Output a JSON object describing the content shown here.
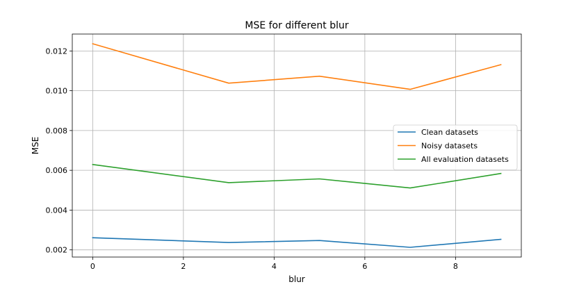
{
  "chart_data": {
    "type": "line",
    "title": "MSE for different blur",
    "xlabel": "blur",
    "ylabel": "MSE",
    "xlim": [
      -0.45,
      9.45
    ],
    "ylim": [
      0.00164,
      0.01285
    ],
    "xticks": [
      0,
      2,
      4,
      6,
      8
    ],
    "xtick_labels": [
      "0",
      "2",
      "4",
      "6",
      "8"
    ],
    "yticks": [
      0.002,
      0.004,
      0.006,
      0.008,
      0.01,
      0.012
    ],
    "ytick_labels": [
      "0.002",
      "0.004",
      "0.006",
      "0.008",
      "0.010",
      "0.012"
    ],
    "grid": true,
    "legend_position": "center-right",
    "x": [
      0,
      3,
      5,
      7,
      9
    ],
    "series": [
      {
        "name": "Clean datasets",
        "color": "#1f77b4",
        "values": [
          0.00261,
          0.00237,
          0.00247,
          0.00213,
          0.00253
        ]
      },
      {
        "name": "Noisy datasets",
        "color": "#ff7f0e",
        "values": [
          0.01236,
          0.01038,
          0.01073,
          0.01007,
          0.01131
        ]
      },
      {
        "name": "All evaluation datasets",
        "color": "#2ca02c",
        "values": [
          0.00629,
          0.00538,
          0.00557,
          0.00511,
          0.00584
        ]
      }
    ]
  }
}
